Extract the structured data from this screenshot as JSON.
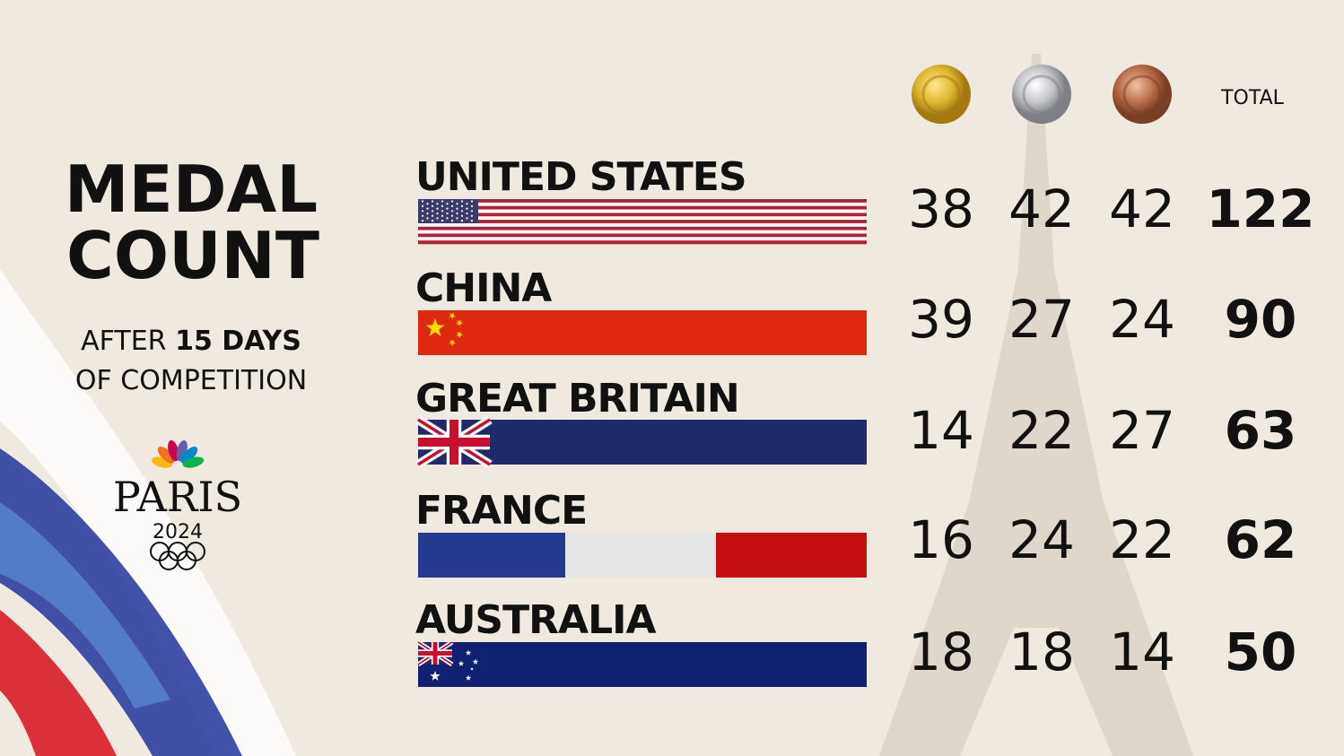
{
  "title": {
    "line1": "MEDAL",
    "line2": "COUNT"
  },
  "subtitle": {
    "before": "AFTER",
    "days": "15 DAYS",
    "after": "OF COMPETITION"
  },
  "logo": {
    "name": "PARIS",
    "year": "2024"
  },
  "header": {
    "total": "TOTAL"
  },
  "rows": [
    {
      "country": "UNITED STATES",
      "gold": 38,
      "silver": 42,
      "bronze": 42,
      "total": 122
    },
    {
      "country": "CHINA",
      "gold": 39,
      "silver": 27,
      "bronze": 24,
      "total": 90
    },
    {
      "country": "GREAT BRITAIN",
      "gold": 14,
      "silver": 22,
      "bronze": 27,
      "total": 63
    },
    {
      "country": "FRANCE",
      "gold": 16,
      "silver": 24,
      "bronze": 22,
      "total": 62
    },
    {
      "country": "AUSTRALIA",
      "gold": 18,
      "silver": 18,
      "bronze": 14,
      "total": 50
    }
  ]
}
